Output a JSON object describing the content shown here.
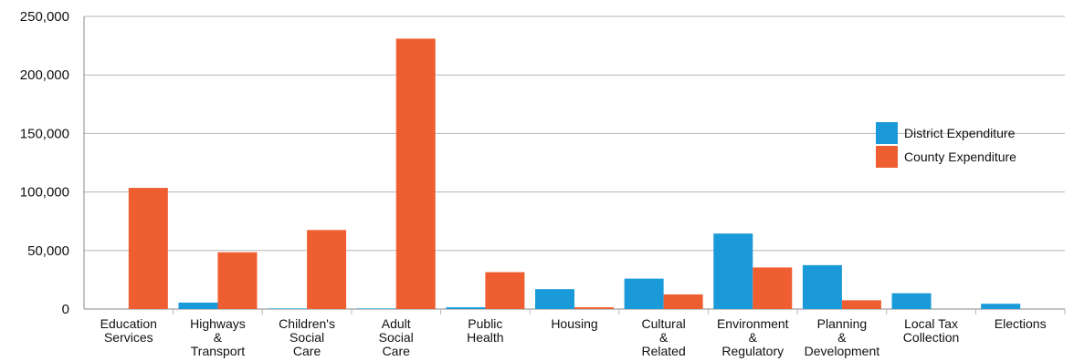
{
  "chart_data": {
    "type": "bar",
    "title": "",
    "xlabel": "",
    "ylabel": "",
    "ylim": [
      0,
      250000
    ],
    "yticks": [
      0,
      50000,
      100000,
      150000,
      200000,
      250000
    ],
    "ytick_labels": [
      "0",
      "50,000",
      "100,000",
      "150,000",
      "200,000",
      "250,000"
    ],
    "grid": true,
    "legend_position": "right",
    "categories": [
      [
        "Education",
        "Services"
      ],
      [
        "Highways",
        "&",
        "Transport"
      ],
      [
        "Children's",
        "Social",
        "Care"
      ],
      [
        "Adult",
        "Social",
        "Care"
      ],
      [
        "Public",
        "Health"
      ],
      [
        "Housing"
      ],
      [
        "Cultural",
        "&",
        "Related"
      ],
      [
        "Environment",
        "&",
        "Regulatory"
      ],
      [
        "Planning",
        "&",
        "Development"
      ],
      [
        "Local Tax",
        "Collection"
      ],
      [
        "Elections"
      ]
    ],
    "series": [
      {
        "name": "District Expenditure",
        "color": "#1b9ad9",
        "values": [
          0,
          5500,
          500,
          500,
          1500,
          17000,
          26000,
          64500,
          37500,
          13500,
          4500
        ]
      },
      {
        "name": "County Expenditure",
        "color": "#ee5e30",
        "values": [
          103500,
          48500,
          67500,
          231000,
          31500,
          1500,
          12500,
          35500,
          7500,
          0,
          0
        ]
      }
    ]
  }
}
